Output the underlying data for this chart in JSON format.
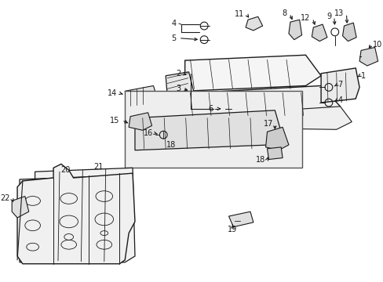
{
  "background_color": "#ffffff",
  "line_color": "#1a1a1a",
  "fig_width": 4.89,
  "fig_height": 3.6,
  "dpi": 100,
  "label_fontsize": 7.0,
  "arrow_fontsize": 6.5
}
